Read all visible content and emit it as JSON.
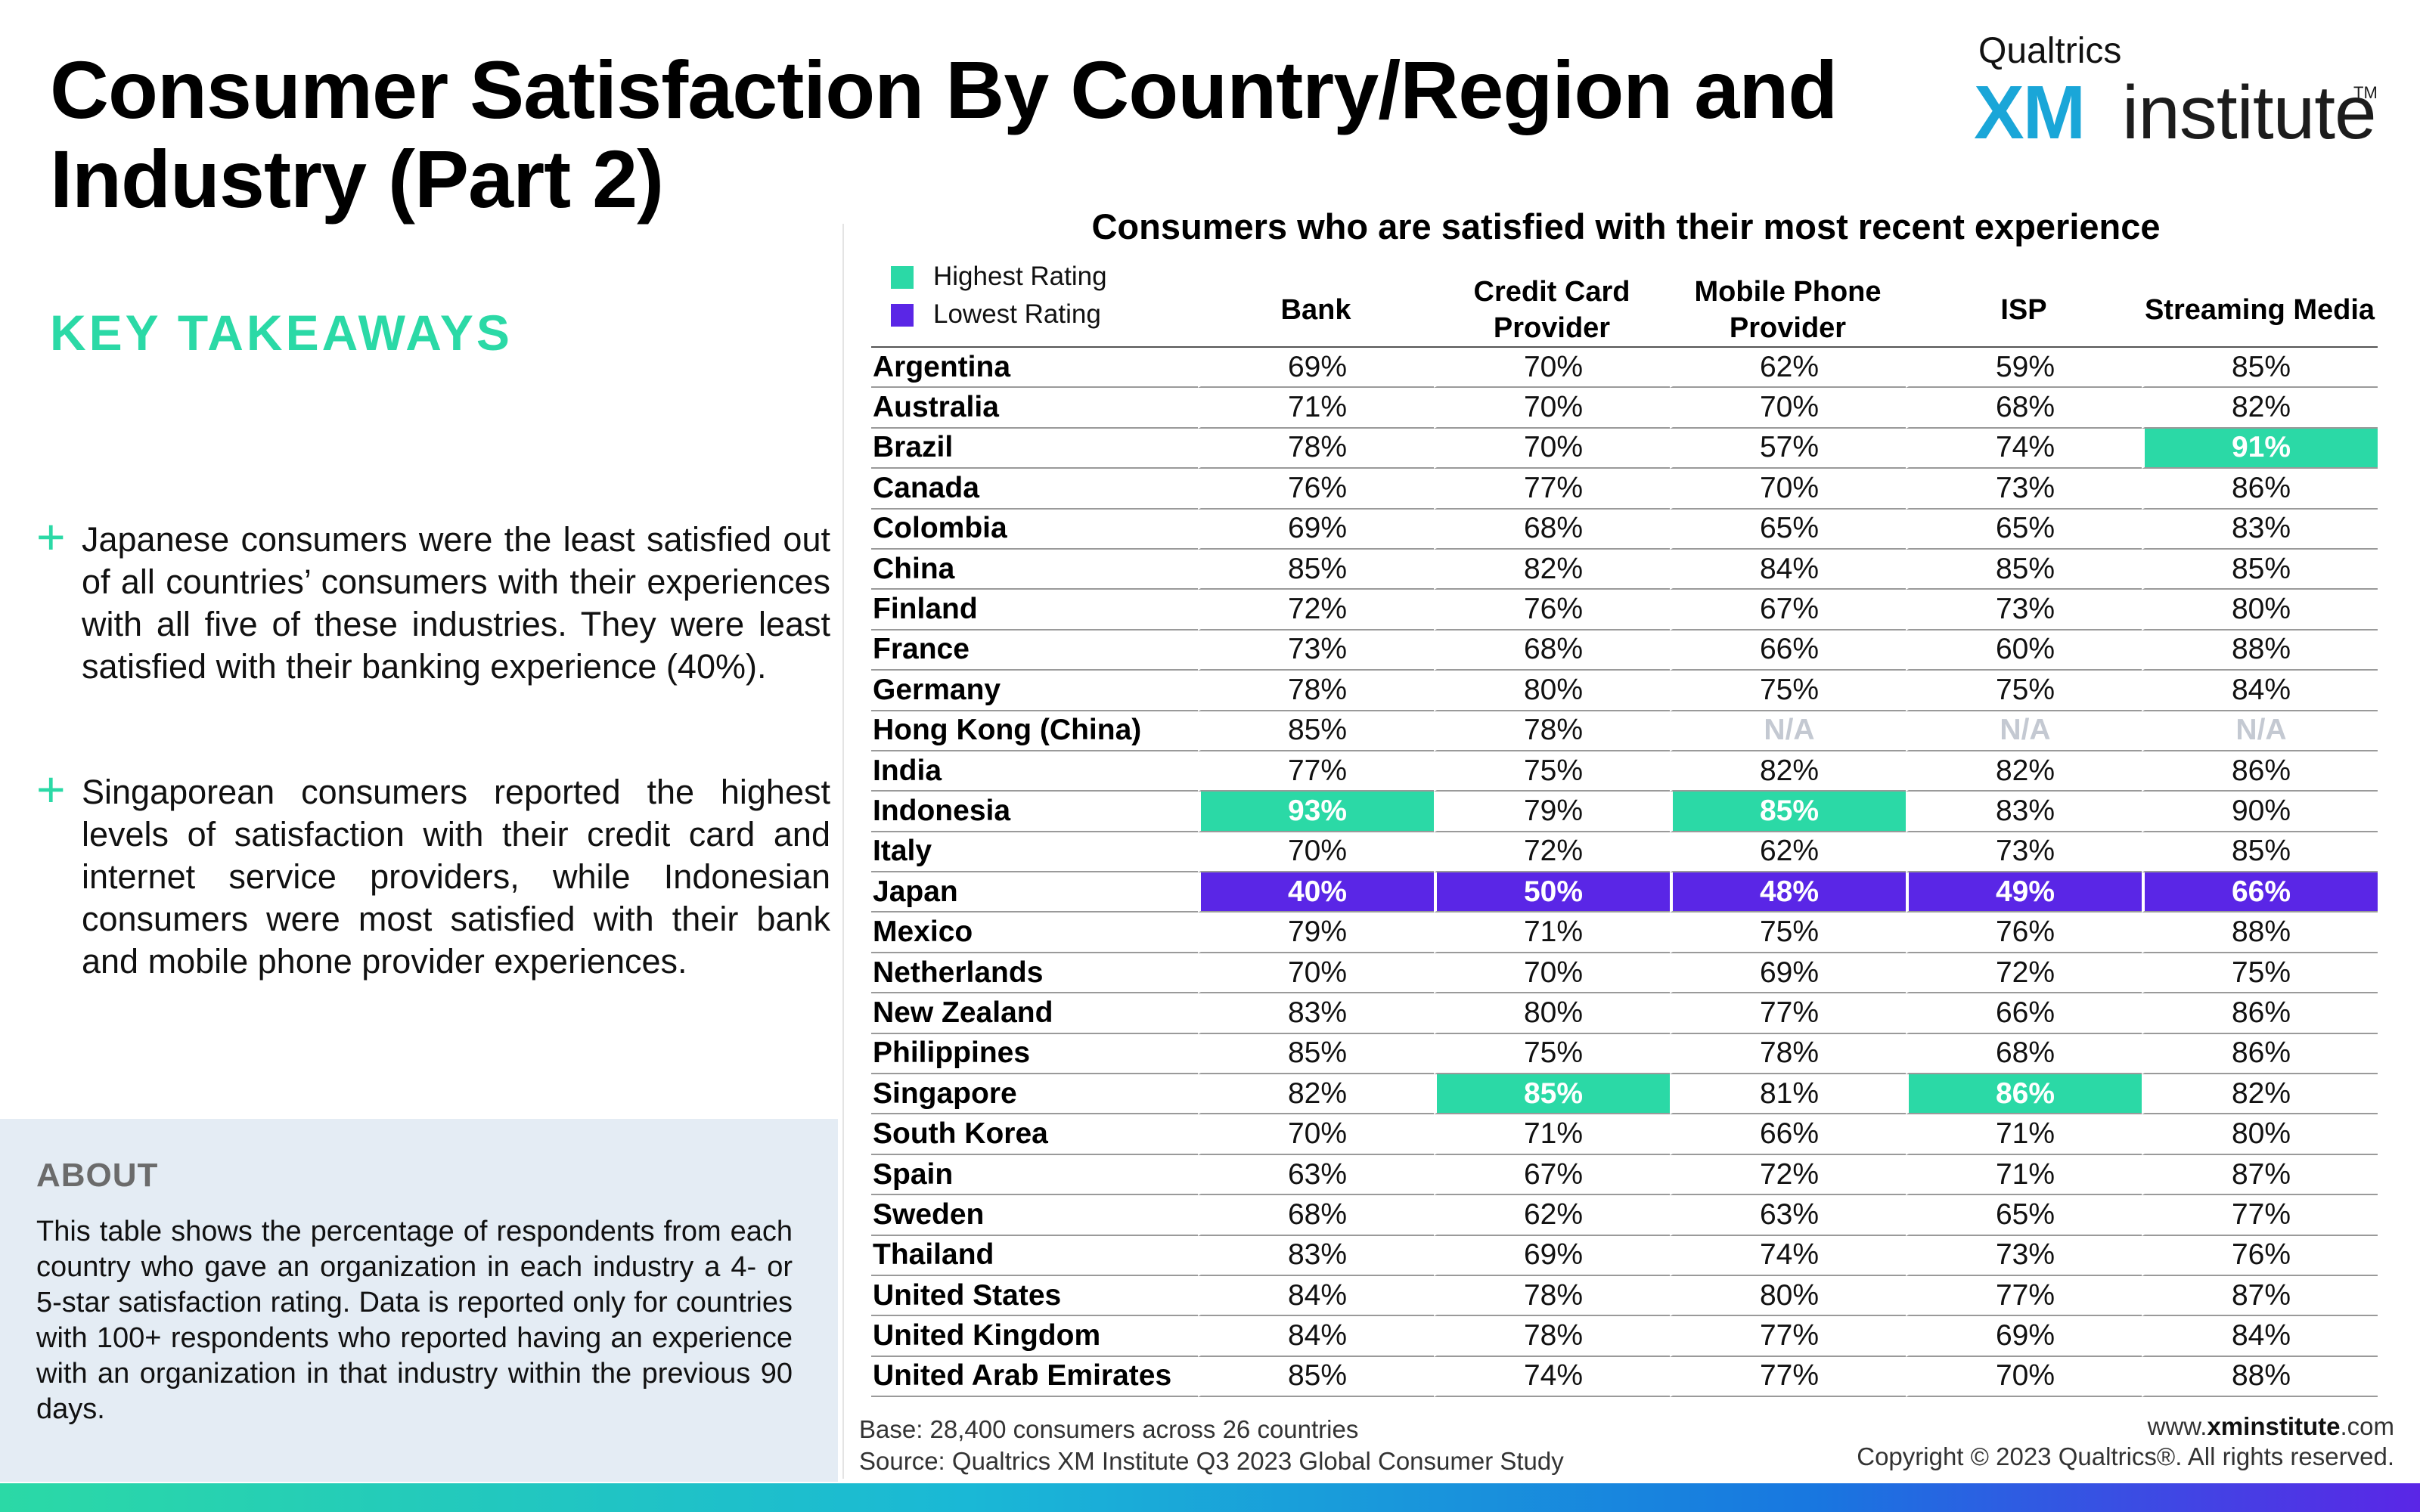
{
  "title": "Consumer Satisfaction By Country/Region and Industry (Part 2)",
  "brand": {
    "top": "Qualtrics",
    "xm": "XM",
    "institute": "institute",
    "tm": "TM"
  },
  "takeaways": {
    "heading": "KEY TAKEAWAYS",
    "items": [
      "Japanese consumers were the least satisfied out of all countries’ consumers with their experiences with all five of these industries. They were least satisfied with their banking experience (40%).",
      "Singaporean consumers reported the highest levels of satisfaction with their credit card and internet service providers, while Indonesian consumers were most satisfied with their bank and mobile phone provider experiences."
    ]
  },
  "about": {
    "heading": "ABOUT",
    "text": "This table shows the percentage of respondents from each country who gave an organization in each industry a 4- or 5-star satisfaction rating. Data is reported only for countries with 100+ respondents who reported having an experience with an organization in that industry within the previous 90 days."
  },
  "legend": {
    "highest": "Highest Rating",
    "lowest": "Lowest Rating"
  },
  "colors": {
    "highest": "#2bd9a6",
    "lowest": "#5a26e6",
    "na_text": "#c4c9d2"
  },
  "chart_data": {
    "type": "table",
    "title": "Consumers who are satisfied with their most recent experience",
    "columns": [
      "Bank",
      "Credit Card Provider",
      "Mobile Phone Provider",
      "ISP",
      "Streaming Media"
    ],
    "rows": [
      {
        "country": "Argentina",
        "values": [
          "69%",
          "70%",
          "62%",
          "59%",
          "85%"
        ],
        "hl": [
          "",
          "",
          "",
          "",
          ""
        ]
      },
      {
        "country": "Australia",
        "values": [
          "71%",
          "70%",
          "70%",
          "68%",
          "82%"
        ],
        "hl": [
          "",
          "",
          "",
          "",
          ""
        ]
      },
      {
        "country": "Brazil",
        "values": [
          "78%",
          "70%",
          "57%",
          "74%",
          "91%"
        ],
        "hl": [
          "",
          "",
          "",
          "",
          "hi"
        ]
      },
      {
        "country": "Canada",
        "values": [
          "76%",
          "77%",
          "70%",
          "73%",
          "86%"
        ],
        "hl": [
          "",
          "",
          "",
          "",
          ""
        ]
      },
      {
        "country": "Colombia",
        "values": [
          "69%",
          "68%",
          "65%",
          "65%",
          "83%"
        ],
        "hl": [
          "",
          "",
          "",
          "",
          ""
        ]
      },
      {
        "country": "China",
        "values": [
          "85%",
          "82%",
          "84%",
          "85%",
          "85%"
        ],
        "hl": [
          "",
          "",
          "",
          "",
          ""
        ]
      },
      {
        "country": "Finland",
        "values": [
          "72%",
          "76%",
          "67%",
          "73%",
          "80%"
        ],
        "hl": [
          "",
          "",
          "",
          "",
          ""
        ]
      },
      {
        "country": "France",
        "values": [
          "73%",
          "68%",
          "66%",
          "60%",
          "88%"
        ],
        "hl": [
          "",
          "",
          "",
          "",
          ""
        ]
      },
      {
        "country": "Germany",
        "values": [
          "78%",
          "80%",
          "75%",
          "75%",
          "84%"
        ],
        "hl": [
          "",
          "",
          "",
          "",
          ""
        ]
      },
      {
        "country": "Hong Kong (China)",
        "values": [
          "85%",
          "78%",
          "N/A",
          "N/A",
          "N/A"
        ],
        "hl": [
          "",
          "",
          "na",
          "na",
          "na"
        ]
      },
      {
        "country": "India",
        "values": [
          "77%",
          "75%",
          "82%",
          "82%",
          "86%"
        ],
        "hl": [
          "",
          "",
          "",
          "",
          ""
        ]
      },
      {
        "country": "Indonesia",
        "values": [
          "93%",
          "79%",
          "85%",
          "83%",
          "90%"
        ],
        "hl": [
          "hi",
          "",
          "hi",
          "",
          ""
        ]
      },
      {
        "country": "Italy",
        "values": [
          "70%",
          "72%",
          "62%",
          "73%",
          "85%"
        ],
        "hl": [
          "",
          "",
          "",
          "",
          ""
        ]
      },
      {
        "country": "Japan",
        "values": [
          "40%",
          "50%",
          "48%",
          "49%",
          "66%"
        ],
        "hl": [
          "lo",
          "lo",
          "lo",
          "lo",
          "lo"
        ]
      },
      {
        "country": "Mexico",
        "values": [
          "79%",
          "71%",
          "75%",
          "76%",
          "88%"
        ],
        "hl": [
          "",
          "",
          "",
          "",
          ""
        ]
      },
      {
        "country": "Netherlands",
        "values": [
          "70%",
          "70%",
          "69%",
          "72%",
          "75%"
        ],
        "hl": [
          "",
          "",
          "",
          "",
          ""
        ]
      },
      {
        "country": "New Zealand",
        "values": [
          "83%",
          "80%",
          "77%",
          "66%",
          "86%"
        ],
        "hl": [
          "",
          "",
          "",
          "",
          ""
        ]
      },
      {
        "country": "Philippines",
        "values": [
          "85%",
          "75%",
          "78%",
          "68%",
          "86%"
        ],
        "hl": [
          "",
          "",
          "",
          "",
          ""
        ]
      },
      {
        "country": "Singapore",
        "values": [
          "82%",
          "85%",
          "81%",
          "86%",
          "82%"
        ],
        "hl": [
          "",
          "hi",
          "",
          "hi",
          ""
        ]
      },
      {
        "country": "South Korea",
        "values": [
          "70%",
          "71%",
          "66%",
          "71%",
          "80%"
        ],
        "hl": [
          "",
          "",
          "",
          "",
          ""
        ]
      },
      {
        "country": "Spain",
        "values": [
          "63%",
          "67%",
          "72%",
          "71%",
          "87%"
        ],
        "hl": [
          "",
          "",
          "",
          "",
          ""
        ]
      },
      {
        "country": "Sweden",
        "values": [
          "68%",
          "62%",
          "63%",
          "65%",
          "77%"
        ],
        "hl": [
          "",
          "",
          "",
          "",
          ""
        ]
      },
      {
        "country": "Thailand",
        "values": [
          "83%",
          "69%",
          "74%",
          "73%",
          "76%"
        ],
        "hl": [
          "",
          "",
          "",
          "",
          ""
        ]
      },
      {
        "country": "United States",
        "values": [
          "84%",
          "78%",
          "80%",
          "77%",
          "87%"
        ],
        "hl": [
          "",
          "",
          "",
          "",
          ""
        ]
      },
      {
        "country": "United Kingdom",
        "values": [
          "84%",
          "78%",
          "77%",
          "69%",
          "84%"
        ],
        "hl": [
          "",
          "",
          "",
          "",
          ""
        ]
      },
      {
        "country": "United Arab Emirates",
        "values": [
          "85%",
          "74%",
          "77%",
          "70%",
          "88%"
        ],
        "hl": [
          "",
          "",
          "",
          "",
          ""
        ]
      }
    ]
  },
  "footer": {
    "base": "Base: 28,400 consumers across 26 countries",
    "source": "Source: Qualtrics XM Institute Q3 2023 Global Consumer Study",
    "website_prefix": "www.",
    "website_bold": "xminstitute",
    "website_suffix": ".com",
    "copyright": "Copyright © 2023 Qualtrics®. All rights reserved."
  }
}
